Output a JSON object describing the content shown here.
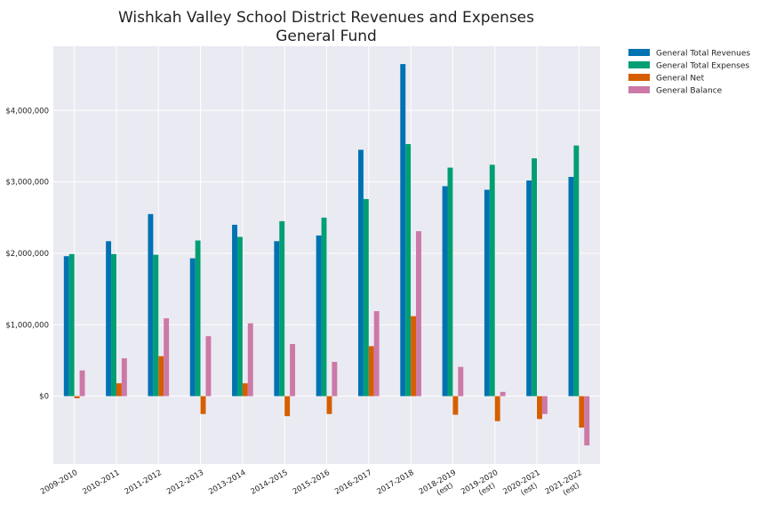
{
  "chart_data": {
    "type": "bar",
    "title": "Wishkah Valley School District Revenues and Expenses",
    "subtitle": "General Fund",
    "xlabel": "",
    "ylabel": "",
    "categories": [
      [
        "2009-2010"
      ],
      [
        "2010-2011"
      ],
      [
        "2011-2012"
      ],
      [
        "2012-2013"
      ],
      [
        "2013-2014"
      ],
      [
        "2014-2015"
      ],
      [
        "2015-2016"
      ],
      [
        "2016-2017"
      ],
      [
        "2017-2018"
      ],
      [
        "2018-2019",
        "(est)"
      ],
      [
        "2019-2020",
        "(est)"
      ],
      [
        "2020-2021",
        "(est)"
      ],
      [
        "2021-2022",
        "(est)"
      ]
    ],
    "ylim": [
      -950000,
      4900000
    ],
    "yticks": [
      0,
      1000000,
      2000000,
      3000000,
      4000000
    ],
    "ytick_labels": [
      "$0",
      "$1,000,000",
      "$2,000,000",
      "$3,000,000",
      "$4,000,000"
    ],
    "grid": true,
    "legend_position": "outside-top-right",
    "series": [
      {
        "name": "General Total Revenues",
        "color": "#0072b2",
        "values": [
          1960000,
          2170000,
          2550000,
          1930000,
          2400000,
          2170000,
          2250000,
          3450000,
          4650000,
          2940000,
          2890000,
          3020000,
          3070000
        ]
      },
      {
        "name": "General Total Expenses",
        "color": "#009e73",
        "values": [
          1990000,
          1990000,
          1980000,
          2180000,
          2230000,
          2450000,
          2500000,
          2760000,
          3530000,
          3200000,
          3240000,
          3330000,
          3510000
        ]
      },
      {
        "name": "General Net",
        "color": "#d55e00",
        "values": [
          -30000,
          180000,
          560000,
          -250000,
          180000,
          -280000,
          -250000,
          700000,
          1120000,
          -260000,
          -350000,
          -320000,
          -440000
        ]
      },
      {
        "name": "General Balance",
        "color": "#cc79a7",
        "values": [
          360000,
          530000,
          1090000,
          840000,
          1020000,
          730000,
          480000,
          1190000,
          2310000,
          410000,
          60000,
          -250000,
          -690000
        ]
      }
    ]
  },
  "style": {
    "plot_background": "#eaeaf2",
    "grid_color": "#ffffff"
  }
}
